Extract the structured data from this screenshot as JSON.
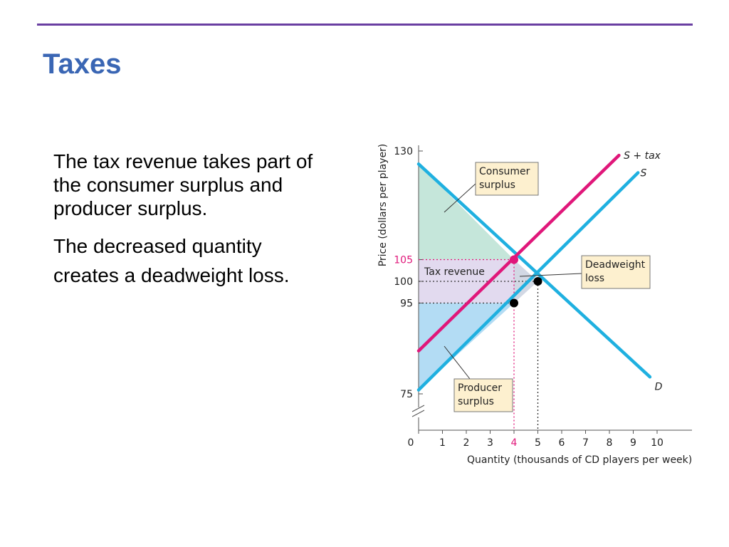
{
  "slide": {
    "title": "Taxes",
    "paragraphs": [
      "The tax revenue takes part of the consumer surplus and producer surplus.",
      "The decreased quantity creates a deadweight loss."
    ]
  },
  "colors": {
    "title": "#3a66b4",
    "rule": "#6a3fa2",
    "demand_supply": "#1fb0e0",
    "supply_plus_tax": "#e0177a",
    "consumer_surplus": "#c5e6da",
    "producer_surplus": "#b3dcf4",
    "tax_revenue": "#e2daef",
    "deadweight_loss": "#d2d8e4",
    "callout_fill": "#fdf0cf"
  },
  "chart_data": {
    "type": "line",
    "xlabel": "Quantity (thousands of CD players per week)",
    "ylabel": "Price (dollars per player)",
    "xlim": [
      0,
      10
    ],
    "ylim": [
      75,
      130
    ],
    "y_axis_break": true,
    "x_ticks": [
      0,
      1,
      2,
      3,
      4,
      5,
      6,
      7,
      8,
      9,
      10
    ],
    "y_ticks": [
      75,
      95,
      100,
      105,
      130
    ],
    "x_tick_labels": [
      "0",
      "1",
      "2",
      "3",
      "4",
      "5",
      "6",
      "7",
      "8",
      "9",
      "10"
    ],
    "y_tick_labels": [
      "75",
      "95",
      "100",
      "105",
      "130"
    ],
    "highlight_x_tick": "4",
    "highlight_y_tick": "105",
    "series": [
      {
        "name": "D",
        "x": [
          0,
          9.7
        ],
        "y": [
          127,
          78
        ]
      },
      {
        "name": "S",
        "x": [
          0,
          9.2
        ],
        "y": [
          75,
          125
        ]
      },
      {
        "name": "S + tax",
        "x": [
          0,
          8.4
        ],
        "y": [
          84,
          129
        ]
      }
    ],
    "points": [
      {
        "x": 4,
        "y": 105,
        "style": "tax"
      },
      {
        "x": 5,
        "y": 100,
        "style": "equilibrium"
      },
      {
        "x": 4,
        "y": 95,
        "style": "equilibrium"
      }
    ],
    "regions": [
      {
        "name": "Consumer surplus",
        "polygon": [
          [
            0,
            127
          ],
          [
            4,
            105
          ],
          [
            0,
            105
          ]
        ]
      },
      {
        "name": "Tax revenue",
        "polygon": [
          [
            0,
            105
          ],
          [
            4,
            105
          ],
          [
            4,
            95
          ],
          [
            0,
            95
          ]
        ]
      },
      {
        "name": "Deadweight loss",
        "polygon": [
          [
            4,
            105
          ],
          [
            5,
            100
          ],
          [
            4,
            95
          ]
        ]
      },
      {
        "name": "Producer surplus",
        "polygon": [
          [
            0,
            95
          ],
          [
            4,
            95
          ],
          [
            0,
            75
          ]
        ]
      }
    ],
    "callouts": {
      "consumer": [
        "Consumer",
        "surplus"
      ],
      "deadweight": [
        "Deadweight",
        "loss"
      ],
      "producer": [
        "Producer",
        "surplus"
      ],
      "tax_revenue": "Tax revenue"
    }
  }
}
